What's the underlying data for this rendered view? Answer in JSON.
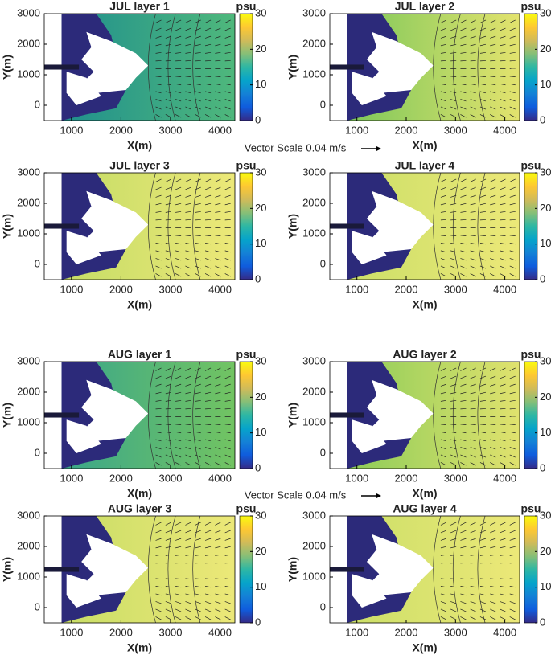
{
  "chart_data": [
    {
      "type": "heatmap",
      "title": "JUL layer 1",
      "xlabel": "X(m)",
      "ylabel": "Y(m)",
      "xlim": [
        450,
        4300
      ],
      "xticks": [
        1000,
        2000,
        3000,
        4000
      ],
      "ylim": [
        -500,
        3000
      ],
      "yticks": [
        0,
        1000,
        2000,
        3000
      ],
      "colors": [
        "#1f8f8d",
        "#4fb87c"
      ],
      "colorbar": {
        "label": "psu",
        "lim": [
          0,
          30
        ],
        "ticks": [
          0,
          10,
          20,
          30
        ]
      }
    },
    {
      "type": "heatmap",
      "title": "JUL layer 2",
      "xlabel": "X(m)",
      "ylabel": "Y(m)",
      "xlim": [
        450,
        4300
      ],
      "xticks": [
        1000,
        2000,
        3000,
        4000
      ],
      "ylim": [
        -500,
        3000
      ],
      "yticks": [
        0,
        1000,
        2000,
        3000
      ],
      "colors": [
        "#7cc75a",
        "#e3e36e"
      ],
      "colorbar": {
        "label": "psu",
        "lim": [
          0,
          30
        ],
        "ticks": [
          0,
          10,
          20,
          30
        ]
      }
    },
    {
      "type": "heatmap",
      "title": "JUL layer 3",
      "xlabel": "X(m)",
      "ylabel": "Y(m)",
      "xlim": [
        450,
        4300
      ],
      "xticks": [
        1000,
        2000,
        3000,
        4000
      ],
      "ylim": [
        -500,
        3000
      ],
      "yticks": [
        0,
        1000,
        2000,
        3000
      ],
      "colors": [
        "#c4dc66",
        "#ece878"
      ],
      "colorbar": {
        "label": "psu",
        "lim": [
          0,
          30
        ],
        "ticks": [
          0,
          10,
          20,
          30
        ]
      }
    },
    {
      "type": "heatmap",
      "title": "JUL layer 4",
      "xlabel": "X(m)",
      "ylabel": "Y(m)",
      "xlim": [
        450,
        4300
      ],
      "xticks": [
        1000,
        2000,
        3000,
        4000
      ],
      "ylim": [
        -500,
        3000
      ],
      "yticks": [
        0,
        1000,
        2000,
        3000
      ],
      "colors": [
        "#cbdf68",
        "#ece878"
      ],
      "colorbar": {
        "label": "psu",
        "lim": [
          0,
          30
        ],
        "ticks": [
          0,
          10,
          20,
          30
        ]
      }
    },
    {
      "type": "heatmap",
      "title": "AUG layer 1",
      "xlabel": "X(m)",
      "ylabel": "Y(m)",
      "xlim": [
        450,
        4300
      ],
      "xticks": [
        1000,
        2000,
        3000,
        4000
      ],
      "ylim": [
        -500,
        3000
      ],
      "yticks": [
        0,
        1000,
        2000,
        3000
      ],
      "colors": [
        "#3aa68a",
        "#72c462"
      ],
      "colorbar": {
        "label": "psu",
        "lim": [
          0,
          30
        ],
        "ticks": [
          0,
          10,
          20,
          30
        ]
      }
    },
    {
      "type": "heatmap",
      "title": "AUG layer 2",
      "xlabel": "X(m)",
      "ylabel": "Y(m)",
      "xlim": [
        450,
        4300
      ],
      "xticks": [
        1000,
        2000,
        3000,
        4000
      ],
      "ylim": [
        -500,
        3000
      ],
      "yticks": [
        0,
        1000,
        2000,
        3000
      ],
      "colors": [
        "#8ccc58",
        "#e0e26e"
      ],
      "colorbar": {
        "label": "psu",
        "lim": [
          0,
          30
        ],
        "ticks": [
          0,
          10,
          20,
          30
        ]
      }
    },
    {
      "type": "heatmap",
      "title": "AUG layer 3",
      "xlabel": "X(m)",
      "ylabel": "Y(m)",
      "xlim": [
        450,
        4300
      ],
      "xticks": [
        1000,
        2000,
        3000,
        4000
      ],
      "ylim": [
        -500,
        3000
      ],
      "yticks": [
        0,
        1000,
        2000,
        3000
      ],
      "colors": [
        "#c8dd66",
        "#ece878"
      ],
      "colorbar": {
        "label": "psu",
        "lim": [
          0,
          30
        ],
        "ticks": [
          0,
          10,
          20,
          30
        ]
      }
    },
    {
      "type": "heatmap",
      "title": "AUG layer 4",
      "xlabel": "X(m)",
      "ylabel": "Y(m)",
      "xlim": [
        450,
        4300
      ],
      "xticks": [
        1000,
        2000,
        3000,
        4000
      ],
      "ylim": [
        -500,
        3000
      ],
      "yticks": [
        0,
        1000,
        2000,
        3000
      ],
      "colors": [
        "#cbdf68",
        "#ece878"
      ],
      "colorbar": {
        "label": "psu",
        "lim": [
          0,
          30
        ],
        "ticks": [
          0,
          10,
          20,
          30
        ]
      }
    }
  ],
  "vector_scale_labels": [
    "Vector Scale 0.04 m/s",
    "Vector Scale 0.04 m/s"
  ],
  "colormap": [
    "#352a87",
    "#0f5cdd",
    "#1481d6",
    "#06a4ca",
    "#2eb7a4",
    "#87bf77",
    "#d1bb59",
    "#fec832",
    "#f9fb0e"
  ]
}
